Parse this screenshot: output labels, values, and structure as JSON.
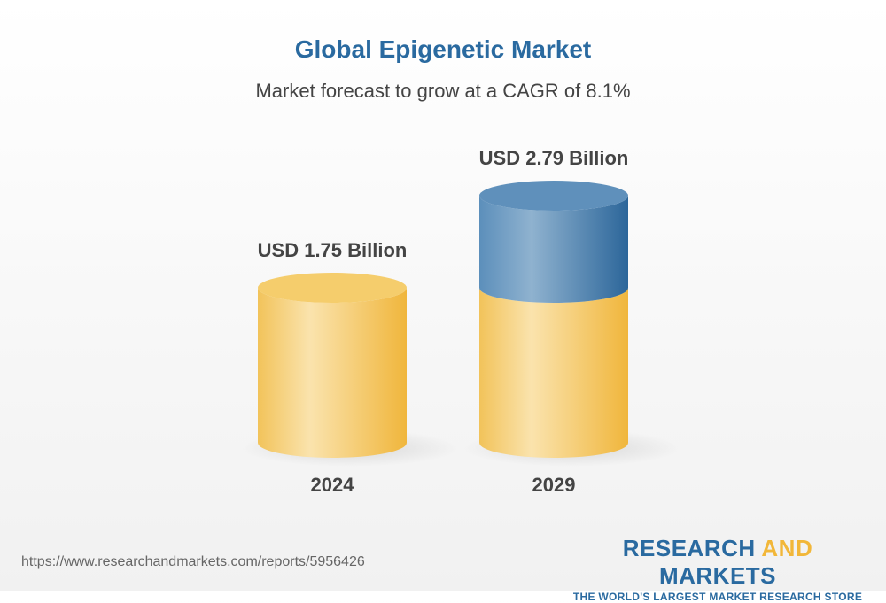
{
  "title": "Global Epigenetic Market",
  "subtitle": "Market forecast to grow at a CAGR of 8.1%",
  "chart_data": {
    "type": "bar",
    "style": "3d-cylinder",
    "categories": [
      "2024",
      "2029"
    ],
    "values": [
      1.75,
      2.79
    ],
    "unit": "USD Billion",
    "data_labels": [
      "USD 1.75 Billion",
      "USD 2.79 Billion"
    ],
    "title": "Global Epigenetic Market",
    "subtitle": "Market forecast to grow at a CAGR of 8.1%",
    "colors": {
      "base": "#f2c65e",
      "growth": "#3f7cad"
    },
    "grid": false
  },
  "footer": {
    "url": "https://www.researchandmarkets.com/reports/5956426",
    "logo_part1": "RESEARCH ",
    "logo_part2": "AND",
    "logo_part3": " MARKETS",
    "tagline": "THE WORLD'S LARGEST MARKET RESEARCH STORE"
  }
}
